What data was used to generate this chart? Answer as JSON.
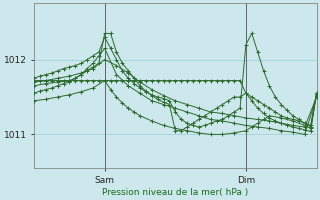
{
  "bg_color": "#cce8ec",
  "grid_color": "#99ccd4",
  "line_color": "#2d6a2d",
  "xlabel": "Pression niveau de la mer( hPa )",
  "yticks": [
    1011,
    1012
  ],
  "ylim": [
    1010.55,
    1012.75
  ],
  "xlim": [
    0,
    48
  ],
  "xtick_positions": [
    12,
    36
  ],
  "xtick_labels": [
    "Sam",
    "Dim"
  ],
  "series": [
    {
      "x": [
        0,
        1,
        2,
        3,
        4,
        5,
        6,
        7,
        8,
        9,
        10,
        11,
        12,
        13,
        14,
        15,
        16,
        17,
        18,
        19,
        20,
        21,
        22,
        23,
        24,
        25,
        26,
        27,
        28,
        29,
        30,
        31,
        32,
        33,
        34,
        35,
        36,
        37,
        38,
        39,
        40,
        41,
        42,
        43,
        44,
        45,
        46,
        47,
        48
      ],
      "y": [
        1011.72,
        1011.72,
        1011.72,
        1011.72,
        1011.72,
        1011.72,
        1011.72,
        1011.72,
        1011.72,
        1011.72,
        1011.72,
        1011.72,
        1011.72,
        1011.72,
        1011.72,
        1011.72,
        1011.72,
        1011.72,
        1011.72,
        1011.72,
        1011.72,
        1011.72,
        1011.72,
        1011.72,
        1011.72,
        1011.72,
        1011.72,
        1011.72,
        1011.72,
        1011.72,
        1011.72,
        1011.72,
        1011.72,
        1011.72,
        1011.72,
        1011.72,
        1011.55,
        1011.45,
        1011.35,
        1011.28,
        1011.22,
        1011.18,
        1011.15,
        1011.12,
        1011.1,
        1011.08,
        1011.06,
        1011.04,
        1011.55
      ]
    },
    {
      "x": [
        0,
        2,
        4,
        6,
        7,
        8,
        9,
        10,
        11,
        12,
        13,
        14,
        15,
        16,
        17,
        18,
        19,
        20,
        21,
        22,
        23,
        24,
        25,
        26,
        27,
        28,
        29,
        30,
        31,
        32,
        33,
        34,
        35,
        36,
        37,
        38,
        39,
        40,
        41,
        42,
        43,
        44,
        45,
        46,
        47,
        48
      ],
      "y": [
        1011.65,
        1011.68,
        1011.7,
        1011.72,
        1011.75,
        1011.8,
        1011.85,
        1011.9,
        1011.95,
        1012.35,
        1012.35,
        1012.1,
        1011.95,
        1011.85,
        1011.75,
        1011.65,
        1011.58,
        1011.52,
        1011.47,
        1011.43,
        1011.4,
        1011.05,
        1011.05,
        1011.1,
        1011.15,
        1011.2,
        1011.25,
        1011.3,
        1011.35,
        1011.4,
        1011.45,
        1011.5,
        1011.5,
        1011.55,
        1011.5,
        1011.45,
        1011.4,
        1011.35,
        1011.3,
        1011.25,
        1011.22,
        1011.2,
        1011.18,
        1011.15,
        1011.12,
        1011.55
      ]
    },
    {
      "x": [
        0,
        1,
        2,
        3,
        4,
        5,
        6,
        7,
        8,
        9,
        10,
        11,
        12,
        13,
        14,
        15,
        16,
        17,
        18,
        19,
        20,
        21,
        22,
        23,
        24,
        25,
        26,
        27,
        28,
        29,
        30,
        31,
        32,
        33,
        34,
        35,
        36,
        37,
        38,
        39,
        40,
        41,
        42,
        43,
        44,
        45,
        46,
        47,
        48
      ],
      "y": [
        1011.75,
        1011.78,
        1011.8,
        1011.82,
        1011.85,
        1011.88,
        1011.9,
        1011.92,
        1011.95,
        1012.0,
        1012.05,
        1012.1,
        1012.3,
        1012.15,
        1012.0,
        1011.85,
        1011.75,
        1011.68,
        1011.62,
        1011.57,
        1011.53,
        1011.5,
        1011.48,
        1011.45,
        1011.3,
        1011.2,
        1011.15,
        1011.12,
        1011.1,
        1011.12,
        1011.15,
        1011.18,
        1011.2,
        1011.25,
        1011.3,
        1011.35,
        1012.2,
        1012.35,
        1012.1,
        1011.85,
        1011.65,
        1011.5,
        1011.4,
        1011.32,
        1011.25,
        1011.2,
        1011.15,
        1011.1,
        1011.55
      ]
    },
    {
      "x": [
        0,
        2,
        4,
        6,
        8,
        10,
        12,
        14,
        16,
        18,
        20,
        22,
        24,
        26,
        28,
        30,
        32,
        34,
        36,
        38,
        40,
        42,
        44,
        46,
        48
      ],
      "y": [
        1011.7,
        1011.72,
        1011.75,
        1011.78,
        1011.82,
        1011.88,
        1012.0,
        1011.92,
        1011.82,
        1011.7,
        1011.6,
        1011.52,
        1011.45,
        1011.4,
        1011.35,
        1011.3,
        1011.28,
        1011.25,
        1011.22,
        1011.2,
        1011.18,
        1011.15,
        1011.12,
        1011.1,
        1011.5
      ]
    },
    {
      "x": [
        0,
        1,
        2,
        3,
        4,
        5,
        6,
        7,
        8,
        9,
        10,
        11,
        12,
        14,
        16,
        18,
        20,
        22,
        24,
        26,
        28,
        30,
        32,
        34,
        36,
        38,
        40,
        42,
        44,
        46,
        48
      ],
      "y": [
        1011.55,
        1011.58,
        1011.6,
        1011.62,
        1011.65,
        1011.68,
        1011.7,
        1011.75,
        1011.8,
        1011.88,
        1011.95,
        1012.05,
        1012.15,
        1011.8,
        1011.65,
        1011.55,
        1011.45,
        1011.4,
        1011.35,
        1011.3,
        1011.25,
        1011.2,
        1011.18,
        1011.15,
        1011.12,
        1011.1,
        1011.08,
        1011.05,
        1011.03,
        1011.0,
        1011.5
      ]
    },
    {
      "x": [
        0,
        2,
        4,
        6,
        8,
        10,
        12,
        13,
        14,
        15,
        16,
        17,
        18,
        20,
        22,
        24,
        26,
        28,
        30,
        32,
        34,
        36,
        37,
        38,
        39,
        40,
        42,
        44,
        46,
        47,
        48
      ],
      "y": [
        1011.45,
        1011.47,
        1011.5,
        1011.53,
        1011.57,
        1011.62,
        1011.72,
        1011.6,
        1011.5,
        1011.42,
        1011.35,
        1011.3,
        1011.25,
        1011.18,
        1011.12,
        1011.08,
        1011.05,
        1011.02,
        1011.0,
        1011.0,
        1011.02,
        1011.05,
        1011.1,
        1011.15,
        1011.2,
        1011.25,
        1011.22,
        1011.18,
        1011.12,
        1011.08,
        1011.55
      ]
    }
  ]
}
